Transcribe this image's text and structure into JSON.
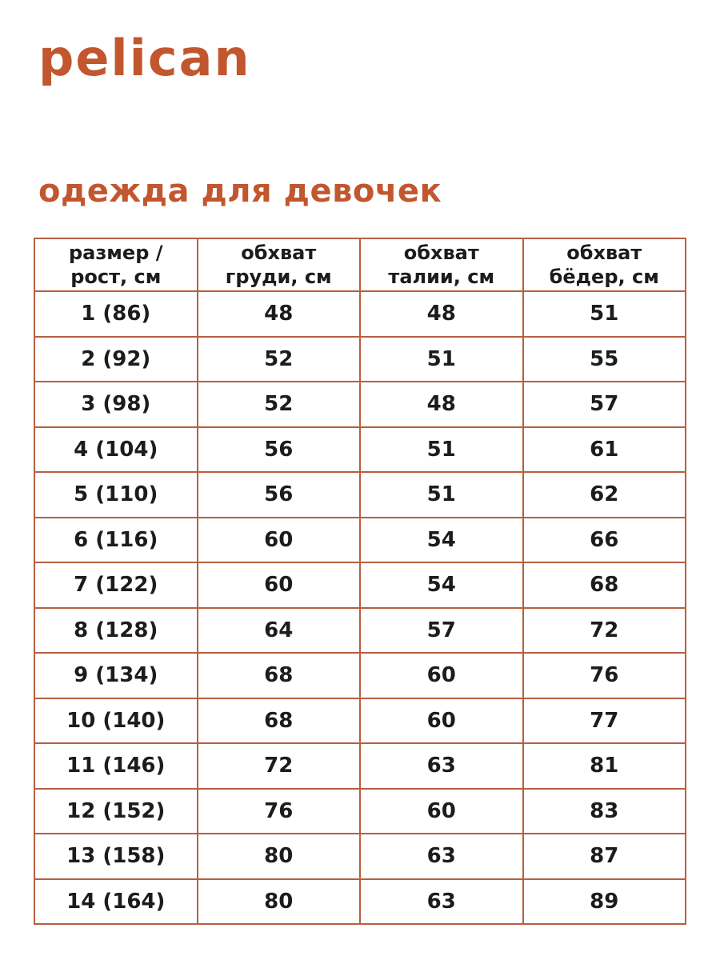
{
  "brand": {
    "logo": "pelican"
  },
  "page": {
    "title": "одежда для девочек"
  },
  "colors": {
    "accent": "#C2562E",
    "table_border": "#B6603F",
    "text": "#1C1C1C",
    "background": "#FFFFFF"
  },
  "chart_data": {
    "type": "table",
    "title": "одежда для девочек",
    "columns": [
      "размер / рост, см",
      "обхват груди, см",
      "обхват талии, см",
      "обхват бёдер, см"
    ],
    "header_lines": [
      [
        "размер /",
        "рост, см"
      ],
      [
        "обхват",
        "груди, см"
      ],
      [
        "обхват",
        "талии, см"
      ],
      [
        "обхват",
        "бёдер, см"
      ]
    ],
    "rows": [
      [
        "1 (86)",
        "48",
        "48",
        "51"
      ],
      [
        "2 (92)",
        "52",
        "51",
        "55"
      ],
      [
        "3 (98)",
        "52",
        "48",
        "57"
      ],
      [
        "4 (104)",
        "56",
        "51",
        "61"
      ],
      [
        "5 (110)",
        "56",
        "51",
        "62"
      ],
      [
        "6 (116)",
        "60",
        "54",
        "66"
      ],
      [
        "7 (122)",
        "60",
        "54",
        "68"
      ],
      [
        "8 (128)",
        "64",
        "57",
        "72"
      ],
      [
        "9 (134)",
        "68",
        "60",
        "76"
      ],
      [
        "10 (140)",
        "68",
        "60",
        "77"
      ],
      [
        "11 (146)",
        "72",
        "63",
        "81"
      ],
      [
        "12 (152)",
        "76",
        "60",
        "83"
      ],
      [
        "13 (158)",
        "80",
        "63",
        "87"
      ],
      [
        "14 (164)",
        "80",
        "63",
        "89"
      ]
    ]
  }
}
